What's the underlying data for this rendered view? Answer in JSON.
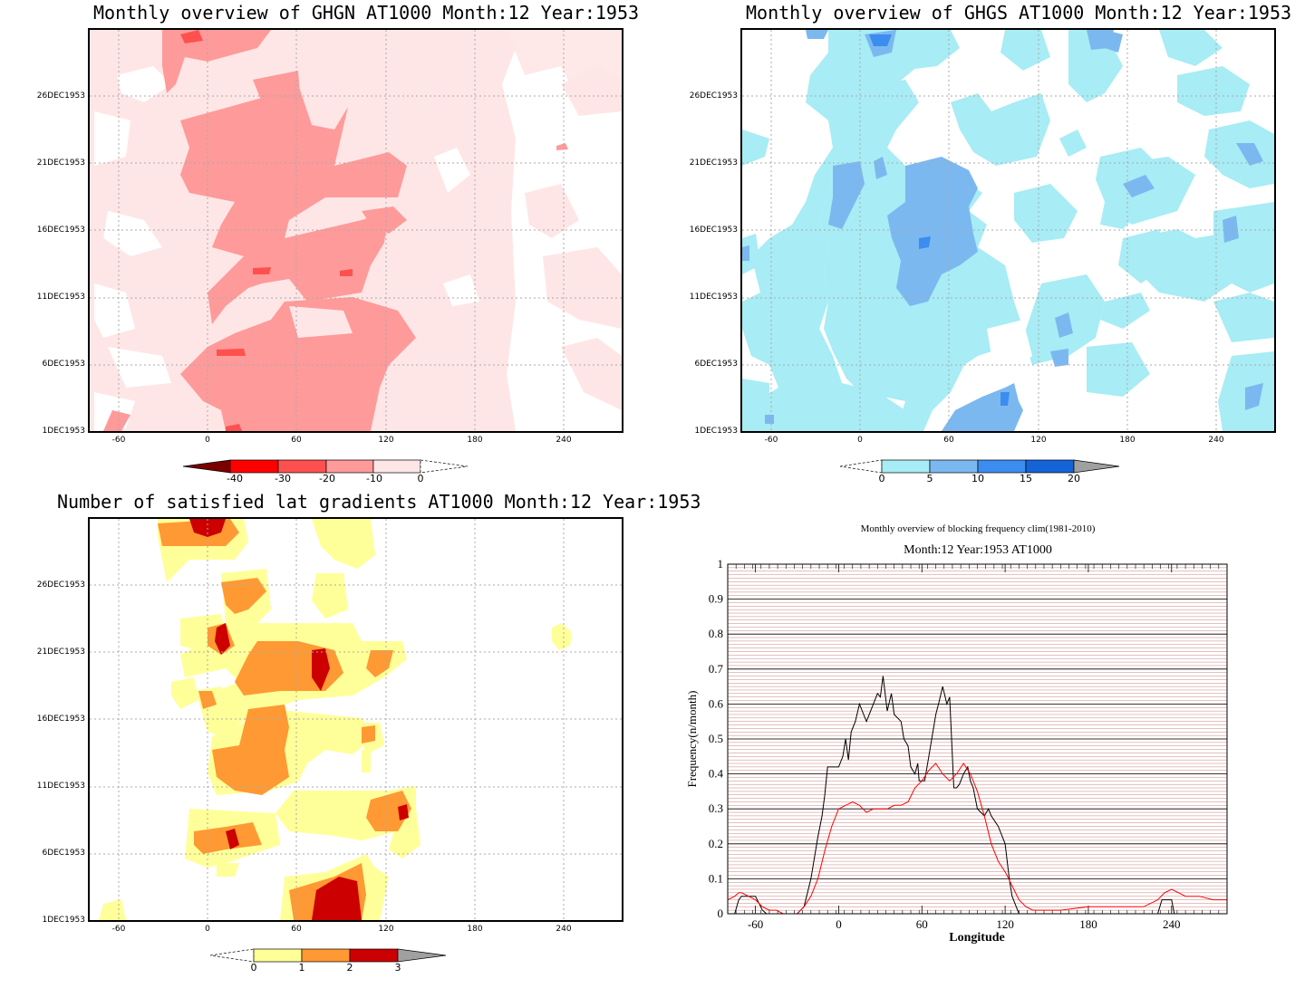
{
  "panels": {
    "ghgn": {
      "title": "Monthly overview of GHGN AT1000 Month:12 Year:1953",
      "y_ticks": [
        "26DEC1953",
        "21DEC1953",
        "16DEC1953",
        "11DEC1953",
        "6DEC1953",
        "1DEC1953"
      ],
      "x_ticks": [
        "-60",
        "0",
        "60",
        "120",
        "180",
        "240"
      ],
      "colorbar": {
        "labels": [
          "-40",
          "-30",
          "-20",
          "-10",
          "0"
        ],
        "colors": [
          "#7a0000",
          "#ff0000",
          "#ff5050",
          "#ff9a9a",
          "#ffe6e6"
        ]
      }
    },
    "ghgs": {
      "title": "Monthly overview of GHGS AT1000 Month:12 Year:1953",
      "y_ticks": [
        "26DEC1953",
        "21DEC1953",
        "16DEC1953",
        "11DEC1953",
        "6DEC1953",
        "1DEC1953"
      ],
      "x_ticks": [
        "-60",
        "0",
        "60",
        "120",
        "180",
        "240"
      ],
      "colorbar": {
        "labels": [
          "0",
          "5",
          "10",
          "15",
          "20"
        ],
        "colors": [
          "#a8ecf5",
          "#7cb8f0",
          "#3b8df0",
          "#1464d8",
          "#a0a0a0"
        ]
      }
    },
    "sat": {
      "title": "Number of satisfied lat gradients AT1000 Month:12 Year:1953",
      "y_ticks": [
        "26DEC1953",
        "21DEC1953",
        "16DEC1953",
        "11DEC1953",
        "6DEC1953",
        "1DEC1953"
      ],
      "x_ticks": [
        "-60",
        "0",
        "60",
        "120",
        "180",
        "240"
      ],
      "colorbar": {
        "labels": [
          "0",
          "1",
          "2",
          "3"
        ],
        "colors": [
          "#ffff99",
          "#ff9933",
          "#cc0000",
          "#a0a0a0"
        ]
      }
    },
    "freq": {
      "supertitle": "Monthly overview of blocking frequency clim(1981-2010)",
      "title": "Month:12 Year:1953  AT1000",
      "xlabel": "Longitude",
      "ylabel": "Frequency(n/month)",
      "y_ticks": [
        "1",
        "0.9",
        "0.8",
        "0.7",
        "0.6",
        "0.5",
        "0.4",
        "0.3",
        "0.2",
        "0.1",
        "0"
      ],
      "x_ticks": [
        "-60",
        "0",
        "60",
        "120",
        "180",
        "240"
      ]
    }
  },
  "chart_data": [
    {
      "type": "heatmap",
      "title": "Monthly overview of GHGN AT1000 Month:12 Year:1953",
      "x_range": [
        -75,
        285
      ],
      "y_range": [
        "1DEC1953",
        "31DEC1953"
      ],
      "levels": [
        -40,
        -30,
        -20,
        -10,
        0
      ]
    },
    {
      "type": "heatmap",
      "title": "Monthly overview of GHGS AT1000 Month:12 Year:1953",
      "x_range": [
        -75,
        285
      ],
      "y_range": [
        "1DEC1953",
        "31DEC1953"
      ],
      "levels": [
        0,
        5,
        10,
        15,
        20
      ]
    },
    {
      "type": "heatmap",
      "title": "Number of satisfied lat gradients AT1000 Month:12 Year:1953",
      "x_range": [
        -75,
        285
      ],
      "y_range": [
        "1DEC1953",
        "31DEC1953"
      ],
      "levels": [
        0,
        1,
        2,
        3
      ]
    },
    {
      "type": "line",
      "title": "Month:12 Year:1953  AT1000",
      "xlabel": "Longitude",
      "ylabel": "Frequency(n/month)",
      "xlim": [
        -80,
        280
      ],
      "ylim": [
        0,
        1
      ],
      "series": [
        {
          "color": "#000000",
          "x": [
            -80,
            -75,
            -72,
            -70,
            -65,
            -60,
            -55,
            -52,
            -50,
            -45,
            -40,
            -35,
            -30,
            -25,
            -20,
            -15,
            -12,
            -10,
            -8,
            -5,
            0,
            3,
            5,
            7,
            9,
            12,
            15,
            18,
            20,
            25,
            28,
            30,
            32,
            35,
            38,
            40,
            45,
            47,
            50,
            52,
            55,
            57,
            58,
            60,
            62,
            65,
            70,
            72,
            75,
            78,
            80,
            83,
            85,
            87,
            90,
            93,
            95,
            97,
            100,
            105,
            108,
            110,
            115,
            120,
            123,
            125,
            130,
            133,
            135,
            140,
            150,
            200,
            230,
            233,
            235,
            240,
            242,
            245,
            280
          ],
          "y": [
            0,
            0,
            0.04,
            0.05,
            0.05,
            0.05,
            0.01,
            0,
            0,
            0,
            0,
            0,
            0,
            0.02,
            0.1,
            0.22,
            0.28,
            0.34,
            0.42,
            0.42,
            0.42,
            0.45,
            0.5,
            0.44,
            0.52,
            0.55,
            0.6,
            0.57,
            0.55,
            0.6,
            0.63,
            0.62,
            0.68,
            0.58,
            0.63,
            0.57,
            0.55,
            0.5,
            0.48,
            0.42,
            0.4,
            0.43,
            0.38,
            0.38,
            0.38,
            0.45,
            0.57,
            0.6,
            0.65,
            0.6,
            0.62,
            0.36,
            0.36,
            0.37,
            0.4,
            0.42,
            0.38,
            0.36,
            0.3,
            0.28,
            0.3,
            0.28,
            0.25,
            0.2,
            0.1,
            0.05,
            0,
            0,
            0,
            0,
            0,
            0,
            0,
            0.04,
            0.04,
            0.04,
            0,
            0,
            0
          ]
        },
        {
          "color": "#ff0000",
          "x": [
            -80,
            -75,
            -72,
            -70,
            -65,
            -60,
            -55,
            -50,
            -45,
            -40,
            -35,
            -30,
            -25,
            -20,
            -15,
            -10,
            -5,
            0,
            5,
            10,
            15,
            20,
            25,
            30,
            35,
            40,
            45,
            50,
            55,
            60,
            65,
            70,
            75,
            80,
            85,
            90,
            95,
            100,
            105,
            110,
            115,
            120,
            125,
            130,
            135,
            140,
            150,
            160,
            180,
            200,
            220,
            230,
            235,
            240,
            245,
            250,
            260,
            270,
            280
          ],
          "y": [
            0.04,
            0.05,
            0.06,
            0.06,
            0.05,
            0.04,
            0.02,
            0.01,
            0.01,
            0,
            0,
            0,
            0.02,
            0.05,
            0.1,
            0.18,
            0.25,
            0.3,
            0.31,
            0.32,
            0.31,
            0.29,
            0.3,
            0.3,
            0.3,
            0.31,
            0.31,
            0.32,
            0.36,
            0.38,
            0.41,
            0.43,
            0.4,
            0.38,
            0.4,
            0.43,
            0.4,
            0.35,
            0.28,
            0.2,
            0.15,
            0.12,
            0.08,
            0.04,
            0.02,
            0.01,
            0.01,
            0.01,
            0.02,
            0.02,
            0.02,
            0.04,
            0.06,
            0.07,
            0.06,
            0.05,
            0.05,
            0.04,
            0.04
          ]
        }
      ]
    }
  ]
}
